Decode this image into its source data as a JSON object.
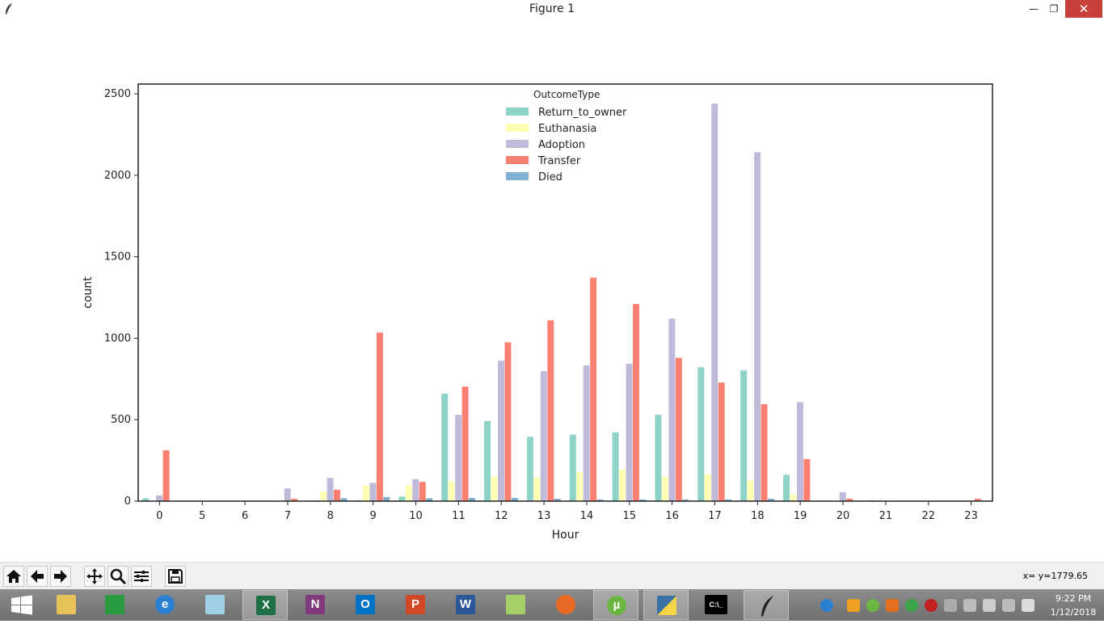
{
  "window": {
    "title": "Figure 1",
    "minimize": "—",
    "maximize": "❐",
    "close": "✕"
  },
  "toolbar": {
    "buttons": [
      "home-icon",
      "back-arrow-icon",
      "forward-arrow-icon",
      "pan-icon",
      "zoom-icon",
      "configure-subplots-icon",
      "save-icon"
    ],
    "coord_readout": "x= y=1779.65"
  },
  "chart_data": {
    "type": "bar",
    "xlabel": "Hour",
    "ylabel": "count",
    "categories": [
      "0",
      "5",
      "6",
      "7",
      "8",
      "9",
      "10",
      "11",
      "12",
      "13",
      "14",
      "15",
      "16",
      "17",
      "18",
      "19",
      "20",
      "21",
      "22",
      "23"
    ],
    "ylim": [
      0,
      2560
    ],
    "yticks": [
      0,
      500,
      1000,
      1500,
      2000,
      2500
    ],
    "legend": {
      "title": "OutcomeType",
      "position": "top-center"
    },
    "series": [
      {
        "name": "Return_to_owner",
        "color": "#8dd3c7",
        "values": [
          18,
          0,
          0,
          0,
          5,
          5,
          28,
          660,
          492,
          395,
          408,
          422,
          530,
          822,
          803,
          162,
          0,
          5,
          0,
          0
        ]
      },
      {
        "name": "Euthanasia",
        "color": "#ffffb3",
        "values": [
          0,
          0,
          0,
          0,
          58,
          95,
          98,
          122,
          150,
          145,
          178,
          193,
          148,
          165,
          128,
          42,
          0,
          0,
          0,
          0
        ]
      },
      {
        "name": "Adoption",
        "color": "#bebada",
        "values": [
          35,
          0,
          0,
          78,
          143,
          112,
          135,
          530,
          862,
          798,
          833,
          843,
          1120,
          2440,
          2142,
          608,
          55,
          0,
          0,
          0
        ]
      },
      {
        "name": "Transfer",
        "color": "#fb8072",
        "values": [
          312,
          0,
          0,
          15,
          70,
          1035,
          118,
          703,
          975,
          1110,
          1372,
          1210,
          880,
          728,
          595,
          258,
          15,
          0,
          0,
          15
        ]
      },
      {
        "name": "Died",
        "color": "#80b1d3",
        "values": [
          0,
          0,
          0,
          0,
          18,
          25,
          18,
          20,
          20,
          15,
          10,
          10,
          10,
          10,
          15,
          0,
          0,
          0,
          0,
          0
        ]
      }
    ]
  },
  "taskbar": {
    "apps": [
      {
        "name": "start-button",
        "label": ""
      },
      {
        "name": "file-explorer",
        "label": ""
      },
      {
        "name": "store",
        "label": ""
      },
      {
        "name": "internet-explorer",
        "label": "e"
      },
      {
        "name": "folders",
        "label": ""
      },
      {
        "name": "excel",
        "label": "X"
      },
      {
        "name": "onenote",
        "label": "N"
      },
      {
        "name": "outlook",
        "label": "O"
      },
      {
        "name": "powerpoint",
        "label": "P"
      },
      {
        "name": "word",
        "label": "W"
      },
      {
        "name": "notepad-plus",
        "label": ""
      },
      {
        "name": "firefox",
        "label": ""
      },
      {
        "name": "utorrent",
        "label": "µ"
      },
      {
        "name": "python",
        "label": ""
      },
      {
        "name": "command-prompt",
        "label": "C:\\_"
      },
      {
        "name": "matplotlib-figure",
        "label": ""
      }
    ],
    "clock_time": "9:22 PM",
    "clock_date": "1/12/2018"
  }
}
